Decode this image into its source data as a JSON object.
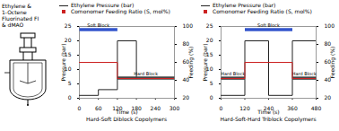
{
  "texts": [
    "Ethylene &",
    "1-Octene",
    "Fluorinated FI",
    "& dMAO"
  ],
  "chart_data": [
    {
      "type": "line",
      "line_style": "step",
      "caption": "Hard-Soft Diblock Copolymers",
      "xlabel": "Time (s)",
      "ylabel": "Pressure (bar)",
      "y2label": "Feeding (%)",
      "xlim": [
        0,
        300
      ],
      "xticks": [
        0,
        60,
        120,
        180,
        240,
        300
      ],
      "ylim": [
        0,
        25
      ],
      "yticks": [
        0,
        5,
        10,
        15,
        20,
        25
      ],
      "y2lim": [
        20,
        100
      ],
      "y2ticks": [
        20,
        40,
        60,
        80,
        100
      ],
      "legend": "top",
      "series": [
        {
          "name": "Ethylene Pressure (bar)",
          "color": "#222222",
          "marker": "none",
          "x": [
            0,
            60,
            60,
            120,
            120,
            180,
            180,
            300
          ],
          "values": [
            1,
            1,
            3,
            3,
            20,
            20,
            7,
            7
          ]
        },
        {
          "name": "Comonomer Feeding Ratio (S, mol%)",
          "color": "#cc2222",
          "marker": "square",
          "axis": "y2",
          "x": [
            0,
            120,
            120,
            300
          ],
          "values": [
            60,
            60,
            42,
            42
          ]
        }
      ],
      "annotations": [
        {
          "text": "Soft Block",
          "x": [
            0,
            120
          ],
          "color": "#3355cc"
        },
        {
          "text": "Hard Block",
          "x": [
            120,
            300
          ],
          "color": "#444444"
        }
      ]
    },
    {
      "type": "line",
      "line_style": "step",
      "caption": "Hard-Soft-Hard Triblock Copolymers",
      "xlabel": "Time (s)",
      "ylabel": "Pressure (bar)",
      "y2label": "Feeding (%)",
      "xlim": [
        0,
        480
      ],
      "xticks": [
        0,
        120,
        240,
        360,
        480
      ],
      "ylim": [
        0,
        25
      ],
      "yticks": [
        0,
        5,
        10,
        15,
        20,
        25
      ],
      "y2lim": [
        20,
        100
      ],
      "y2ticks": [
        20,
        40,
        60,
        80,
        100
      ],
      "legend": "top",
      "series": [
        {
          "name": "Ethylene Pressure (bar)",
          "color": "#222222",
          "marker": "none",
          "x": [
            0,
            120,
            120,
            240,
            240,
            360,
            360,
            480
          ],
          "values": [
            1,
            1,
            20,
            20,
            1,
            1,
            20,
            20
          ]
        },
        {
          "name": "Comonomer Feeding Ratio (S, mol%)",
          "color": "#cc2222",
          "marker": "square",
          "axis": "y2",
          "x": [
            0,
            120,
            120,
            360,
            360,
            480
          ],
          "values": [
            42,
            42,
            60,
            60,
            42,
            42
          ]
        }
      ],
      "annotations": [
        {
          "text": "Soft Block",
          "x": [
            120,
            360
          ],
          "color": "#3355cc"
        },
        {
          "text": "Hard Block",
          "x": [
            0,
            120
          ],
          "color": "#444444"
        },
        {
          "text": "Hard Block",
          "x": [
            360,
            480
          ],
          "color": "#444444"
        }
      ]
    }
  ]
}
